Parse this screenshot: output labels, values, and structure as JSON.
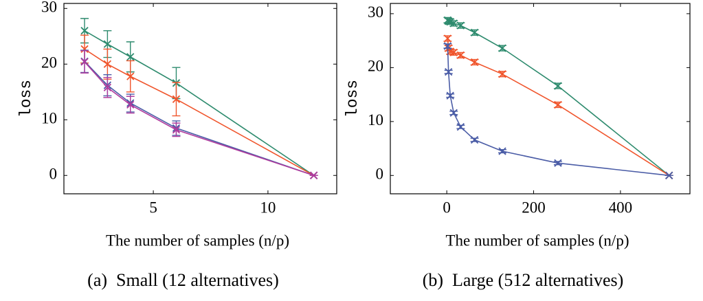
{
  "chart_data": [
    {
      "type": "line",
      "caption": "(a)  Small (12 alternatives)",
      "xlabel": "The number of samples (n/p)",
      "ylabel": "loss",
      "xlim": [
        1.1,
        13
      ],
      "ylim": [
        -3.3,
        30.9
      ],
      "xticks": [
        5,
        10
      ],
      "yticks": [
        0,
        10,
        20,
        30
      ],
      "x": [
        2,
        3,
        4,
        6,
        12
      ],
      "series": [
        {
          "color": "#2e8b6e",
          "values": [
            26,
            23.6,
            21.3,
            16.6,
            0
          ],
          "error": [
            2.2,
            2.4,
            2.7,
            2.8,
            0
          ]
        },
        {
          "color": "#f0552c",
          "values": [
            22.7,
            20,
            17.8,
            13.7,
            0
          ],
          "error": [
            2.5,
            2.7,
            2.8,
            3.0,
            0
          ]
        },
        {
          "color": "#4a5ca6",
          "values": [
            20.5,
            16.2,
            13.0,
            8.5,
            0
          ],
          "error": [
            2.0,
            1.9,
            1.6,
            1.3,
            0
          ]
        },
        {
          "color": "#b03c9e",
          "values": [
            20.4,
            15.8,
            12.7,
            8.2,
            0
          ],
          "error": [
            2.0,
            1.8,
            1.5,
            1.2,
            0
          ]
        }
      ]
    },
    {
      "type": "line",
      "caption": "(b)  Large (512 alternatives)",
      "xlabel": "The number of samples (n/p)",
      "ylabel": "loss",
      "xlim": [
        -130,
        560
      ],
      "ylim": [
        -3.4,
        31.9
      ],
      "xticks": [
        0,
        200,
        400
      ],
      "yticks": [
        0,
        10,
        20,
        30
      ],
      "x": [
        2,
        4,
        8,
        16,
        32,
        64,
        128,
        256,
        512
      ],
      "series": [
        {
          "color": "#2e8b6e",
          "values": [
            28.8,
            28.6,
            28.5,
            28.2,
            27.8,
            26.5,
            23.6,
            16.6,
            0
          ],
          "error": [
            0.5,
            0.5,
            0.5,
            0.5,
            0.5,
            0.5,
            0.5,
            0.5,
            0
          ]
        },
        {
          "color": "#f0552c",
          "values": [
            25.4,
            23.6,
            23.0,
            22.8,
            22.3,
            21.0,
            18.8,
            13.1,
            0
          ],
          "error": [
            0.5,
            0.5,
            0.5,
            0.5,
            0.5,
            0.5,
            0.5,
            0.5,
            0
          ]
        },
        {
          "color": "#4a5ca6",
          "values": [
            24,
            19.2,
            14.8,
            11.6,
            9.0,
            6.6,
            4.5,
            2.3,
            0
          ],
          "error": [
            0.4,
            0.3,
            0.3,
            0.3,
            0.3,
            0.3,
            0.3,
            0.3,
            0
          ]
        }
      ]
    }
  ]
}
